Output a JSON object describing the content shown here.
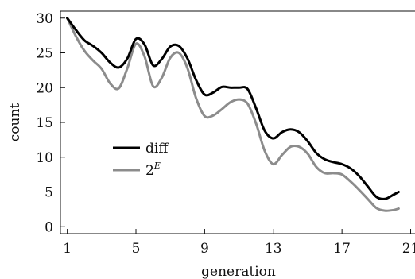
{
  "chart_data": {
    "type": "line",
    "xlabel": "generation",
    "ylabel": "count",
    "xlim": [
      0.6,
      21.3
    ],
    "ylim": [
      -1,
      31
    ],
    "xticks": [
      1,
      5,
      9,
      13,
      17,
      21
    ],
    "yticks": [
      0,
      5,
      10,
      15,
      20,
      25,
      30
    ],
    "grid": false,
    "legend_position": "center-left",
    "series": [
      {
        "name": "diff",
        "legend_base": "diff",
        "legend_sup": "",
        "color": "#000000",
        "points": [
          [
            1,
            30
          ],
          [
            1.5,
            28.3
          ],
          [
            2,
            26.8
          ],
          [
            2.5,
            26
          ],
          [
            3,
            25
          ],
          [
            3.5,
            23.6
          ],
          [
            4,
            22.9
          ],
          [
            4.5,
            24.2
          ],
          [
            5,
            27
          ],
          [
            5.5,
            26.2
          ],
          [
            6,
            23.2
          ],
          [
            6.5,
            24.1
          ],
          [
            7,
            25.9
          ],
          [
            7.5,
            26
          ],
          [
            8,
            24.2
          ],
          [
            8.5,
            21.1
          ],
          [
            9,
            19
          ],
          [
            9.5,
            19.3
          ],
          [
            10,
            20.1
          ],
          [
            10.5,
            20
          ],
          [
            11,
            20
          ],
          [
            11.5,
            19.8
          ],
          [
            12,
            17
          ],
          [
            12.5,
            13.8
          ],
          [
            13,
            12.7
          ],
          [
            13.5,
            13.6
          ],
          [
            14,
            14
          ],
          [
            14.5,
            13.6
          ],
          [
            15,
            12.3
          ],
          [
            15.5,
            10.6
          ],
          [
            16,
            9.7
          ],
          [
            16.5,
            9.3
          ],
          [
            17,
            9
          ],
          [
            17.5,
            8.4
          ],
          [
            18,
            7.3
          ],
          [
            18.5,
            5.8
          ],
          [
            19,
            4.3
          ],
          [
            19.5,
            4
          ],
          [
            20,
            4.6
          ],
          [
            20.3,
            5
          ]
        ]
      },
      {
        "name": "2^E",
        "legend_base": "2",
        "legend_sup": "E",
        "color": "#8c8c8c",
        "points": [
          [
            1,
            30
          ],
          [
            1.5,
            27.4
          ],
          [
            2,
            25.3
          ],
          [
            2.5,
            23.9
          ],
          [
            3,
            22.7
          ],
          [
            3.5,
            20.6
          ],
          [
            4,
            19.9
          ],
          [
            4.5,
            22.8
          ],
          [
            5,
            26.3
          ],
          [
            5.5,
            24.5
          ],
          [
            6,
            20.2
          ],
          [
            6.5,
            21.4
          ],
          [
            7,
            24.3
          ],
          [
            7.5,
            25
          ],
          [
            8,
            22.8
          ],
          [
            8.5,
            18.5
          ],
          [
            9,
            15.9
          ],
          [
            9.5,
            16
          ],
          [
            10,
            16.9
          ],
          [
            10.5,
            17.9
          ],
          [
            11,
            18.3
          ],
          [
            11.5,
            17.7
          ],
          [
            12,
            14.8
          ],
          [
            12.5,
            10.9
          ],
          [
            13,
            9
          ],
          [
            13.5,
            10.3
          ],
          [
            14,
            11.5
          ],
          [
            14.5,
            11.5
          ],
          [
            15,
            10.5
          ],
          [
            15.5,
            8.6
          ],
          [
            16,
            7.7
          ],
          [
            16.5,
            7.7
          ],
          [
            17,
            7.5
          ],
          [
            17.5,
            6.5
          ],
          [
            18,
            5.3
          ],
          [
            18.5,
            4
          ],
          [
            19,
            2.7
          ],
          [
            19.5,
            2.3
          ],
          [
            20,
            2.4
          ],
          [
            20.3,
            2.6
          ]
        ]
      }
    ]
  }
}
